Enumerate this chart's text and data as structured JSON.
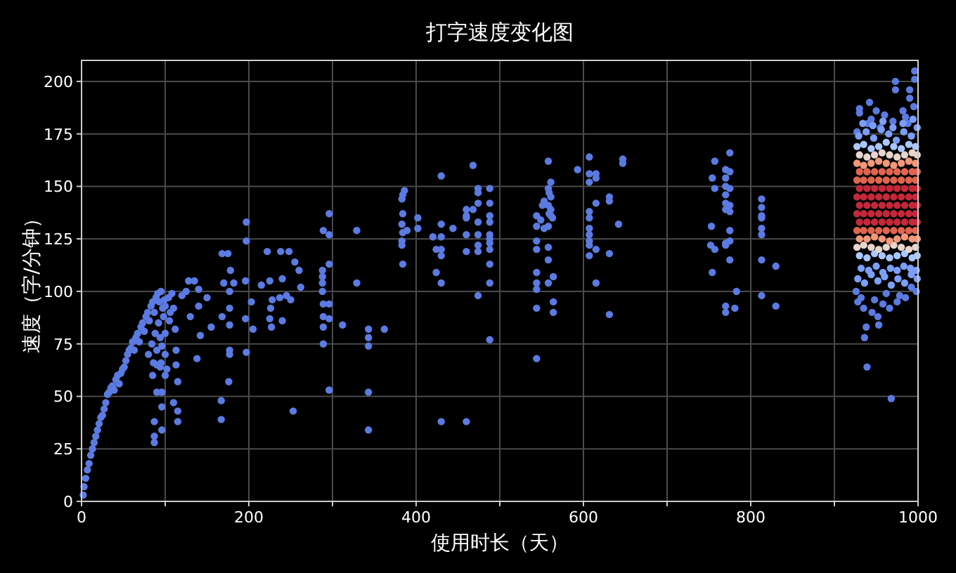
{
  "chart_data": {
    "type": "scatter",
    "title": "打字速度变化图",
    "xlabel": "使用时长（天）",
    "ylabel": "速度（字/分钟）",
    "xlim": [
      0,
      1000
    ],
    "ylim": [
      0,
      210
    ],
    "xticks": [
      0,
      {
        "value": 100,
        "label": null
      },
      200,
      {
        "value": 300,
        "label": null
      },
      400,
      {
        "value": 500,
        "label": null
      },
      600,
      {
        "value": 700,
        "label": null
      },
      800,
      {
        "value": 900,
        "label": null
      },
      1000
    ],
    "yticks": [
      0,
      25,
      50,
      75,
      100,
      125,
      150,
      175,
      200
    ],
    "grid": true,
    "marker": "circle",
    "series": [
      {
        "color": "#5b7be2",
        "x": [
          2,
          3,
          5,
          7,
          9,
          11,
          13,
          15,
          17,
          19,
          21,
          23,
          25,
          27,
          29,
          31,
          33,
          35,
          37,
          39,
          41,
          43,
          45,
          47,
          49,
          51,
          53,
          55,
          57,
          59,
          61,
          63,
          65,
          67,
          69,
          71,
          73,
          75,
          77,
          79,
          81,
          83,
          85,
          87,
          89,
          91,
          93,
          95,
          97,
          99,
          87,
          87,
          87,
          90,
          96,
          96,
          96,
          85,
          90,
          95,
          100,
          102,
          100,
          105,
          110,
          112,
          113,
          115,
          113,
          110,
          115,
          115,
          120,
          125,
          130,
          128,
          135,
          140,
          142,
          138,
          140,
          150,
          155,
          80,
          84,
          88,
          92,
          94,
          98,
          100,
          104,
          106,
          108,
          90,
          94,
          100,
          86,
          96
        ],
        "values": [
          3,
          7,
          11,
          15,
          18,
          22,
          25,
          28,
          31,
          34,
          37,
          40,
          41,
          44,
          47,
          51,
          52,
          54,
          55,
          53,
          58,
          60,
          56,
          61,
          63,
          64,
          67,
          70,
          72,
          73,
          76,
          72,
          78,
          80,
          76,
          83,
          85,
          81,
          88,
          90,
          86,
          93,
          95,
          90,
          97,
          99,
          95,
          100,
          92,
          96,
          28,
          31,
          38,
          52,
          52,
          45,
          34,
          60,
          65,
          66,
          70,
          63,
          80,
          86,
          92,
          82,
          65,
          57,
          72,
          47,
          43,
          38,
          98,
          100,
          88,
          105,
          105,
          101,
          79,
          68,
          93,
          97,
          83,
          70,
          75,
          80,
          85,
          78,
          88,
          93,
          97,
          90,
          99,
          72,
          64,
          60,
          66,
          74
        ]
      },
      {
        "color": "#5b7be2",
        "x": [
          168,
          170,
          168,
          167,
          167,
          175,
          178,
          177,
          177,
          177,
          177,
          177,
          176,
          182,
          197,
          197,
          196,
          196,
          197,
          203,
          205,
          215,
          225,
          228,
          226,
          225,
          227,
          238,
          240,
          237,
          240,
          245,
          250,
          255,
          253,
          260,
          262,
          248,
          222,
          288,
          288,
          288,
          288,
          296,
          289,
          296,
          296,
          289,
          296,
          289,
          296,
          289,
          289,
          296,
          312,
          329,
          329,
          343,
          343,
          343,
          343,
          343,
          362,
          386,
          384,
          383,
          384,
          383,
          384,
          389,
          383,
          383,
          384,
          402,
          402,
          430,
          430,
          420,
          430,
          424,
          430,
          430,
          424,
          430,
          444,
          430,
          460,
          468,
          460,
          468,
          474,
          474,
          488,
          474,
          488,
          460,
          460,
          474,
          488,
          488,
          460,
          474,
          488,
          488,
          474,
          488,
          488,
          474,
          460,
          488,
          488,
          474,
          488
        ],
        "values": [
          118,
          104,
          88,
          48,
          39,
          118,
          110,
          100,
          92,
          84,
          72,
          70,
          57,
          104,
          133,
          124,
          105,
          87,
          71,
          95,
          82,
          103,
          105,
          96,
          92,
          87,
          83,
          119,
          106,
          97,
          86,
          98,
          96,
          114,
          43,
          110,
          102,
          119,
          119,
          104,
          107,
          110,
          100,
          137,
          129,
          127,
          113,
          94,
          94,
          88,
          87,
          83,
          75,
          53,
          84,
          129,
          104,
          82,
          78,
          74,
          52,
          34,
          82,
          148,
          146,
          144,
          137,
          132,
          128,
          129,
          124,
          122,
          113,
          135,
          130,
          155,
          132,
          126,
          126,
          120,
          120,
          117,
          109,
          104,
          130,
          38,
          38,
          160,
          139,
          139,
          149,
          147,
          149,
          142,
          142,
          136,
          135,
          133,
          136,
          133,
          127,
          127,
          127,
          125,
          122,
          123,
          120,
          119,
          119,
          113,
          104,
          98,
          77
        ]
      },
      {
        "color": "#5b7be2",
        "x": [
          558,
          561,
          558,
          559,
          561,
          553,
          558,
          561,
          559,
          551,
          544,
          549,
          561,
          563,
          558,
          544,
          553,
          544,
          544,
          558,
          558,
          544,
          544,
          544,
          564,
          558,
          544,
          564,
          564,
          544,
          593,
          607,
          607,
          615,
          615,
          607,
          615,
          607,
          607,
          607,
          607,
          607,
          607,
          615,
          607,
          615,
          631,
          631,
          631,
          631,
          642,
          647,
          647,
          775,
          757,
          770,
          775,
          754,
          770,
          757,
          770,
          775,
          770,
          770,
          775,
          770,
          775,
          753,
          775,
          752,
          757,
          770,
          775,
          770,
          775,
          754,
          783,
          770,
          781,
          770,
          813,
          813,
          813,
          813,
          813,
          813,
          813,
          813,
          830,
          830,
          996,
          996,
          973,
          973,
          990,
          930,
          942,
          990,
          939,
          968,
          936,
          938,
          953,
          952,
          966,
          978,
          928,
          935,
          945,
          958,
          985,
          998,
          926,
          932,
          948,
          962,
          975,
          992,
          930,
          944,
          960,
          982,
          995,
          940,
          955,
          970,
          985,
          927,
          950,
          988
        ],
        "values": [
          162,
          152,
          149,
          147,
          145,
          143,
          141,
          139,
          137,
          141,
          136,
          134,
          136,
          135,
          131,
          131,
          130,
          124,
          120,
          121,
          115,
          109,
          104,
          101,
          107,
          104,
          92,
          95,
          90,
          68,
          158,
          164,
          156,
          156,
          154,
          152,
          142,
          138,
          135,
          130,
          127,
          124,
          122,
          120,
          117,
          104,
          145,
          143,
          118,
          89,
          132,
          163,
          161,
          166,
          162,
          158,
          157,
          154,
          154,
          149,
          150,
          149,
          146,
          142,
          141,
          139,
          138,
          131,
          129,
          122,
          120,
          123,
          124,
          122,
          115,
          109,
          100,
          93,
          92,
          90,
          144,
          140,
          136,
          135,
          130,
          127,
          115,
          98,
          112,
          93,
          205,
          201,
          200,
          196,
          196,
          187,
          190,
          192,
          64,
          49,
          78,
          83,
          84,
          88,
          92,
          98,
          95,
          92,
          90,
          94,
          97,
          100,
          100,
          97,
          96,
          99,
          95,
          102,
          185,
          182,
          184,
          186,
          188,
          180,
          178,
          181,
          183,
          176,
          186,
          180
        ]
      },
      {
        "color": "#7b9ff9",
        "x": [
          928,
          936,
          944,
          952,
          960,
          968,
          976,
          984,
          992,
          999,
          932,
          941,
          950,
          958,
          967,
          975,
          983,
          991,
          998,
          929,
          938,
          947,
          956,
          965,
          974,
          983,
          992,
          999,
          934,
          946,
          958,
          970,
          982,
          994
        ],
        "values": [
          106,
          104,
          108,
          105,
          107,
          103,
          106,
          104,
          108,
          106,
          111,
          110,
          112,
          109,
          111,
          110,
          112,
          111,
          110,
          174,
          176,
          173,
          177,
          175,
          172,
          176,
          174,
          178,
          180,
          179,
          181,
          178,
          180,
          182
        ]
      },
      {
        "color": "#aac7fd",
        "x": [
          930,
          939,
          948,
          957,
          966,
          975,
          984,
          993,
          999,
          927,
          935,
          944,
          953,
          962,
          971,
          980,
          989,
          997
        ],
        "values": [
          117,
          116,
          118,
          117,
          116,
          117,
          118,
          116,
          117,
          169,
          170,
          168,
          169,
          171,
          169,
          168,
          170,
          169
        ]
      },
      {
        "color": "#e8d6cc",
        "x": [
          927,
          935,
          944,
          953,
          962,
          971,
          980,
          989,
          997,
          930,
          939,
          948,
          957,
          966,
          975,
          984,
          993,
          999
        ],
        "values": [
          121,
          122,
          121,
          120,
          121,
          122,
          121,
          120,
          121,
          165,
          164,
          165,
          166,
          165,
          164,
          165,
          166,
          165
        ]
      },
      {
        "color": "#f4987a",
        "x": [
          930,
          939,
          948,
          957,
          966,
          975,
          984,
          993,
          999,
          927,
          935,
          944,
          953,
          962,
          971,
          980,
          989,
          997
        ],
        "values": [
          125,
          125,
          126,
          125,
          124,
          125,
          126,
          125,
          125,
          161,
          160,
          161,
          162,
          161,
          160,
          161,
          162,
          161
        ]
      },
      {
        "color": "#e0654f",
        "x": [
          927,
          935,
          944,
          953,
          962,
          971,
          980,
          989,
          997,
          927,
          935,
          944,
          953,
          962,
          971,
          980,
          989,
          997,
          930,
          939,
          948,
          957,
          966,
          975,
          984,
          993,
          999
        ],
        "values": [
          129,
          129,
          129,
          129,
          129,
          129,
          129,
          129,
          129,
          153,
          153,
          153,
          153,
          153,
          153,
          153,
          153,
          153,
          157,
          157,
          157,
          157,
          157,
          157,
          157,
          157,
          157
        ]
      },
      {
        "color": "#c5283a",
        "x": [
          930,
          939,
          948,
          957,
          966,
          975,
          984,
          993,
          999,
          927,
          935,
          944,
          953,
          962,
          971,
          980,
          989,
          997,
          930,
          939,
          948,
          957,
          966,
          975,
          984,
          993,
          999,
          927,
          935,
          944,
          953,
          962,
          971,
          980,
          989,
          997,
          930,
          939,
          948,
          957,
          966,
          975,
          984,
          993,
          999
        ],
        "values": [
          133,
          133,
          133,
          133,
          133,
          133,
          133,
          133,
          133,
          137,
          137,
          137,
          137,
          137,
          137,
          137,
          137,
          137,
          141,
          141,
          141,
          141,
          141,
          141,
          141,
          141,
          141,
          145,
          145,
          145,
          145,
          145,
          145,
          145,
          145,
          145,
          149,
          149,
          149,
          149,
          149,
          149,
          149,
          149,
          149
        ]
      }
    ]
  }
}
